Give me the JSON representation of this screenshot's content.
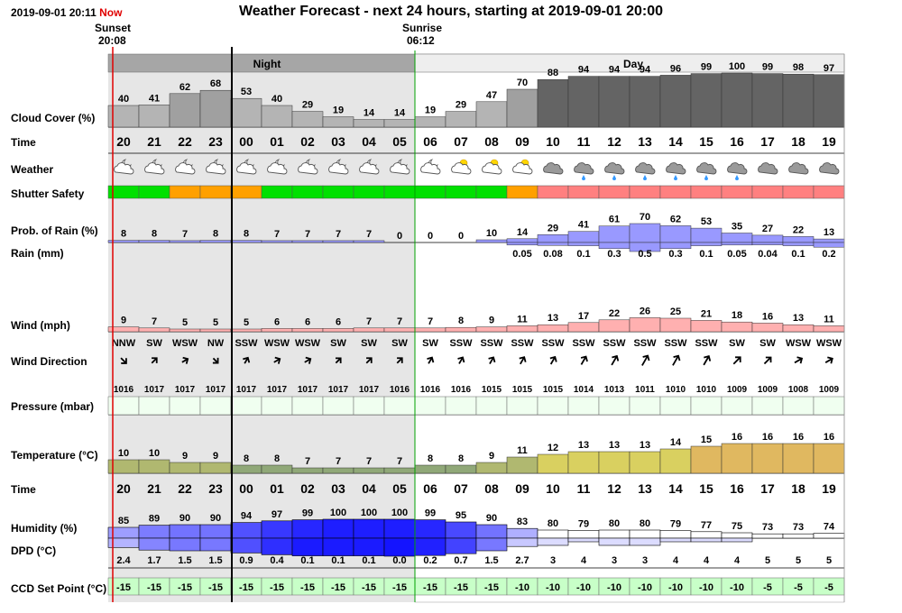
{
  "header": {
    "timestamp": "2019-09-01 20:11",
    "now_label": "Now",
    "title": "Weather Forecast - next 24 hours, starting at 2019-09-01 20:00",
    "sunset_label": "Sunset",
    "sunset_time": "20:08",
    "sunrise_label": "Sunrise",
    "sunrise_time": "06:12",
    "night_label": "Night",
    "day_label": "Day"
  },
  "labels": {
    "cloud": "Cloud Cover (%)",
    "time": "Time",
    "weather": "Weather",
    "shutter": "Shutter Safety",
    "rain_prob": "Prob. of Rain (%)",
    "rain_mm": "Rain (mm)",
    "wind": "Wind (mph)",
    "wind_dir": "Wind Direction",
    "pressure": "Pressure (mbar)",
    "temperature": "Temperature (°C)",
    "time2": "Time",
    "humidity": "Humidity (%)",
    "dpd": "DPD (°C)",
    "ccd": "CCD Set Point (°C)"
  },
  "colors": {
    "night_bg": "#e6e6e6",
    "day_bg": "#ffffff",
    "night_header": "#a6a6a6",
    "day_header": "#eeeeee",
    "now_line": "#e00000",
    "sunrise_line": "#00a000",
    "cloud_bar": "#b4b4b4",
    "safe": "#00e000",
    "caution": "#ffa000",
    "unsafe": "#ff8080",
    "rain_bar": "#9999ff",
    "wind_bar": "#ffb0b0",
    "pressure_box": "#f0fff0",
    "ccd_box": "#c8ffc8"
  },
  "chart_data": {
    "type": "table",
    "hours": [
      "20",
      "21",
      "22",
      "23",
      "00",
      "01",
      "02",
      "03",
      "04",
      "05",
      "06",
      "07",
      "08",
      "09",
      "10",
      "11",
      "12",
      "13",
      "14",
      "15",
      "16",
      "17",
      "18",
      "19"
    ],
    "cloud_cover": [
      40,
      41,
      62,
      68,
      53,
      40,
      29,
      19,
      14,
      14,
      19,
      29,
      47,
      70,
      88,
      94,
      94,
      94,
      96,
      99,
      100,
      99,
      98,
      97
    ],
    "weather_icons": [
      "night-partly-cloudy-icon",
      "night-partly-cloudy-icon",
      "night-partly-cloudy-icon",
      "night-partly-cloudy-icon",
      "night-partly-cloudy-icon",
      "night-partly-cloudy-icon",
      "night-partly-cloudy-icon",
      "night-partly-cloudy-icon",
      "night-partly-cloudy-icon",
      "night-partly-cloudy-icon",
      "night-partly-cloudy-icon",
      "day-partly-cloudy-icon",
      "day-partly-cloudy-icon",
      "day-partly-cloudy-icon",
      "cloud-icon",
      "rain-cloud-icon",
      "rain-cloud-icon",
      "rain-cloud-icon",
      "rain-cloud-icon",
      "rain-cloud-icon",
      "rain-cloud-icon",
      "cloud-icon",
      "cloud-icon",
      "cloud-icon"
    ],
    "shutter_safety": [
      "safe",
      "safe",
      "caution",
      "caution",
      "caution",
      "safe",
      "safe",
      "safe",
      "safe",
      "safe",
      "safe",
      "safe",
      "safe",
      "caution",
      "unsafe",
      "unsafe",
      "unsafe",
      "unsafe",
      "unsafe",
      "unsafe",
      "unsafe",
      "unsafe",
      "unsafe",
      "unsafe"
    ],
    "rain_probability": [
      8,
      8,
      7,
      8,
      8,
      7,
      7,
      7,
      7,
      0,
      0,
      0,
      10,
      14,
      29,
      41,
      61,
      70,
      62,
      53,
      35,
      27,
      22,
      13
    ],
    "rain_mm": [
      null,
      null,
      null,
      null,
      null,
      null,
      null,
      null,
      null,
      null,
      null,
      null,
      null,
      "0.05",
      "0.08",
      "0.1",
      "0.3",
      "0.5",
      "0.3",
      "0.1",
      "0.05",
      "0.04",
      "0.1",
      "0.2"
    ],
    "wind_mph": [
      9,
      7,
      5,
      5,
      5,
      6,
      6,
      6,
      7,
      7,
      7,
      8,
      9,
      11,
      13,
      17,
      22,
      26,
      25,
      21,
      18,
      16,
      13,
      11
    ],
    "wind_direction": [
      "NNW",
      "SW",
      "WSW",
      "NW",
      "SSW",
      "WSW",
      "WSW",
      "SW",
      "SW",
      "SW",
      "SW",
      "SSW",
      "SSW",
      "SSW",
      "SSW",
      "SSW",
      "SSW",
      "SSW",
      "SSW",
      "SSW",
      "SW",
      "SW",
      "WSW",
      "WSW"
    ],
    "wind_arrow_deg": [
      135,
      45,
      60,
      135,
      30,
      60,
      60,
      45,
      45,
      45,
      30,
      30,
      30,
      30,
      30,
      30,
      30,
      30,
      30,
      30,
      45,
      45,
      60,
      60
    ],
    "pressure_mbar": [
      1016,
      1017,
      1017,
      1017,
      1017,
      1017,
      1017,
      1017,
      1017,
      1016,
      1016,
      1016,
      1015,
      1015,
      1015,
      1014,
      1013,
      1011,
      1010,
      1010,
      1009,
      1009,
      1008,
      1009
    ],
    "temperature_c": [
      10,
      10,
      9,
      9,
      8,
      8,
      7,
      7,
      7,
      7,
      8,
      8,
      9,
      11,
      12,
      13,
      13,
      13,
      14,
      15,
      16,
      16,
      16,
      16
    ],
    "humidity_pct": [
      85,
      89,
      90,
      90,
      94,
      97,
      99,
      100,
      100,
      100,
      99,
      95,
      90,
      83,
      80,
      79,
      80,
      80,
      79,
      77,
      75,
      73,
      73,
      74
    ],
    "dpd_c": [
      "2.4",
      "1.7",
      "1.5",
      "1.5",
      "0.9",
      "0.4",
      "0.1",
      "0.1",
      "0.1",
      "0.0",
      "0.2",
      "0.7",
      "1.5",
      "2.7",
      "3",
      "4",
      "3",
      "3",
      "4",
      "4",
      "4",
      "5",
      "5",
      "5"
    ],
    "ccd_setpoint_c": [
      -15,
      -15,
      -15,
      -15,
      -15,
      -15,
      -15,
      -15,
      -15,
      -15,
      -15,
      -15,
      -15,
      -10,
      -10,
      -10,
      -10,
      -10,
      -10,
      -10,
      -10,
      -5,
      -5,
      -5
    ]
  }
}
